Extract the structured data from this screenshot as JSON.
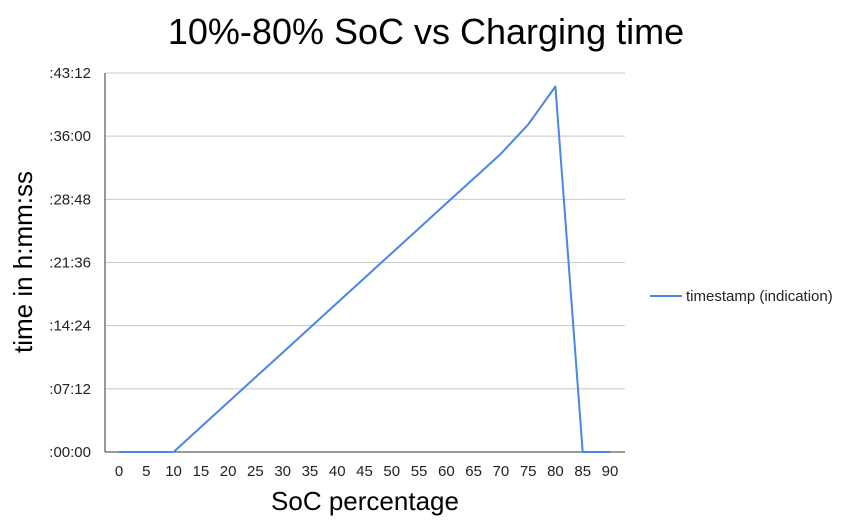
{
  "chart_data": {
    "type": "line",
    "title": "10%-80% SoC vs Charging time",
    "xlabel": "SoC percentage",
    "ylabel": "time in h:mm:ss",
    "x": [
      0,
      5,
      10,
      15,
      20,
      25,
      30,
      35,
      40,
      45,
      50,
      55,
      60,
      65,
      70,
      75,
      80,
      85,
      90
    ],
    "x_tick_labels": [
      "0",
      "5",
      "10",
      "15",
      "20",
      "25",
      "30",
      "35",
      "40",
      "45",
      "50",
      "55",
      "60",
      "65",
      "70",
      "75",
      "80",
      "85",
      "90"
    ],
    "y_unit": "seconds",
    "ylim": [
      0,
      2592
    ],
    "y_ticks": [
      0,
      432,
      864,
      1296,
      1728,
      2160,
      2592
    ],
    "y_tick_labels": [
      ":00:00",
      ":07:12",
      ":14:24",
      ":21:36",
      ":28:48",
      ":36:00",
      ":43:12"
    ],
    "series": [
      {
        "name": "timestamp (indication)",
        "color": "#4a86e8",
        "values": [
          0,
          0,
          0,
          170,
          340,
          510,
          680,
          850,
          1020,
          1190,
          1360,
          1530,
          1700,
          1870,
          2040,
          2240,
          2500,
          0,
          0
        ]
      }
    ],
    "grid": true,
    "legend": "right"
  }
}
